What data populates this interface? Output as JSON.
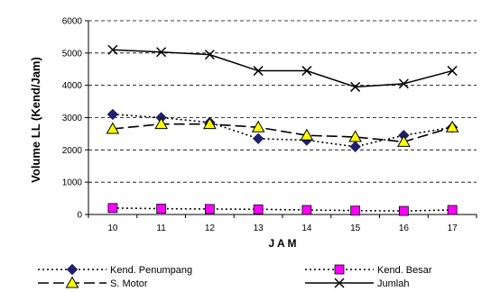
{
  "chart_data": {
    "type": "line",
    "title": "",
    "xlabel": "J A M",
    "ylabel": "Volume LL  (Kend/Jam)",
    "categories": [
      "10",
      "11",
      "12",
      "13",
      "14",
      "15",
      "16",
      "17"
    ],
    "ylim": [
      0,
      6000
    ],
    "yticks": [
      "0",
      "1000",
      "2000",
      "3000",
      "4000",
      "5000",
      "6000"
    ],
    "grid": "horizontal-dashed",
    "legend_position": "bottom",
    "series": [
      {
        "name": "Kend. Penumpang",
        "values": [
          3100,
          3000,
          2850,
          2350,
          2300,
          2100,
          2450,
          2700
        ],
        "color": "#1f1f6b",
        "line": "dotted",
        "marker": "diamond"
      },
      {
        "name": "Kend. Besar",
        "values": [
          200,
          180,
          170,
          160,
          140,
          120,
          110,
          140
        ],
        "color": "#ff00ff",
        "line": "dotted",
        "marker": "square"
      },
      {
        "name": "S. Motor",
        "values": [
          2650,
          2800,
          2800,
          2700,
          2450,
          2400,
          2250,
          2700
        ],
        "color": "#ffff00",
        "line": "longdash",
        "marker": "triangle"
      },
      {
        "name": "Jumlah",
        "values": [
          5100,
          5030,
          4950,
          4450,
          4450,
          3950,
          4050,
          4450
        ],
        "color": "#000000",
        "line": "solid",
        "marker": "x"
      }
    ]
  }
}
